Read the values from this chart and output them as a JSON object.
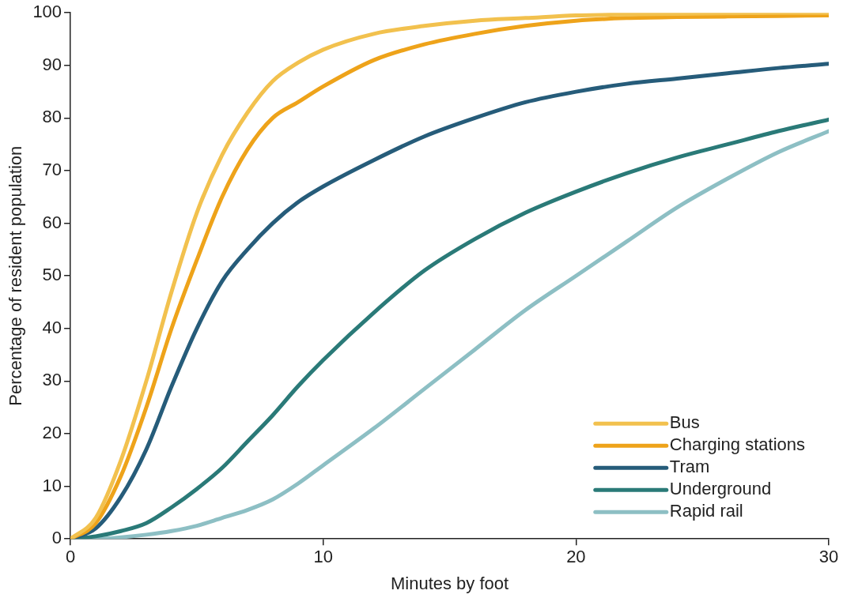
{
  "chart_data": {
    "type": "line",
    "xlabel": "Minutes by foot",
    "ylabel": "Percentage of resident population",
    "x": [
      0,
      1,
      2,
      3,
      4,
      5,
      6,
      7,
      8,
      9,
      10,
      12,
      14,
      16,
      18,
      20,
      22,
      24,
      26,
      28,
      30
    ],
    "series": [
      {
        "name": "Bus",
        "color": "#f2c14e",
        "values": [
          0,
          4,
          15,
          30,
          47,
          62,
          73,
          81,
          87,
          90.5,
          93,
          96,
          97.5,
          98.5,
          99,
          99.5,
          99.7,
          99.8,
          99.9,
          100,
          100
        ]
      },
      {
        "name": "Charging stations",
        "color": "#eea31a",
        "values": [
          0,
          3,
          12,
          25,
          40,
          53,
          65,
          74,
          80,
          83,
          86,
          91,
          94,
          96,
          97.5,
          98.5,
          99,
          99.2,
          99.3,
          99.4,
          99.5
        ]
      },
      {
        "name": "Tram",
        "color": "#265c7a",
        "values": [
          0,
          2,
          8,
          17,
          29,
          40,
          49,
          55,
          60,
          64,
          67,
          72,
          76.5,
          80,
          83,
          85,
          86.5,
          87.5,
          88.5,
          89.5,
          90.3
        ]
      },
      {
        "name": "Underground",
        "color": "#2a7a78",
        "values": [
          0,
          0.5,
          1.5,
          3,
          6,
          9.5,
          13.5,
          18.5,
          23.5,
          29,
          34,
          43,
          51,
          57,
          62,
          66,
          69.5,
          72.5,
          75,
          77.5,
          79.7
        ]
      },
      {
        "name": "Rapid rail",
        "color": "#8dbfc4",
        "values": [
          0,
          0,
          0.3,
          0.8,
          1.5,
          2.5,
          4,
          5.5,
          7.5,
          10.5,
          14,
          21,
          28.5,
          36,
          43.5,
          50,
          56.5,
          63,
          68.5,
          73.5,
          77.5
        ]
      }
    ],
    "xlim": [
      0,
      30
    ],
    "xticks": [
      0,
      10,
      20,
      30
    ],
    "ylim": [
      0,
      100
    ],
    "yticks": [
      0,
      10,
      20,
      30,
      40,
      50,
      60,
      70,
      80,
      90,
      100
    ],
    "grid": false,
    "legend": "bottom right",
    "marker": "none",
    "line_style": "solid"
  }
}
